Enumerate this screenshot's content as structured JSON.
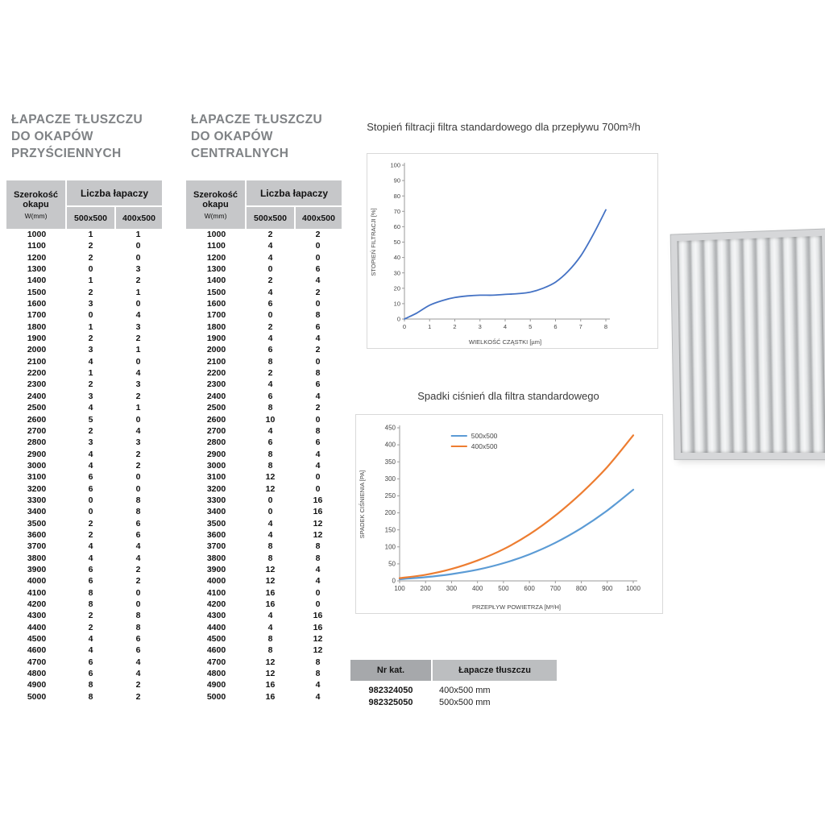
{
  "page": {
    "tables": [
      {
        "title_lines": [
          "ŁAPACZE TŁUSZCZU",
          "DO OKAPÓW",
          "PRZYŚCIENNYCH"
        ],
        "header": {
          "width_label_1": "Szerokość",
          "width_label_2": "okapu",
          "width_unit": "W(mm)",
          "group_label": "Liczba łapaczy",
          "col_500": "500x500",
          "col_400": "400x500"
        },
        "rows": [
          [
            1000,
            1,
            1
          ],
          [
            1100,
            2,
            0
          ],
          [
            1200,
            2,
            0
          ],
          [
            1300,
            0,
            3
          ],
          [
            1400,
            1,
            2
          ],
          [
            1500,
            2,
            1
          ],
          [
            1600,
            3,
            0
          ],
          [
            1700,
            0,
            4
          ],
          [
            1800,
            1,
            3
          ],
          [
            1900,
            2,
            2
          ],
          [
            2000,
            3,
            1
          ],
          [
            2100,
            4,
            0
          ],
          [
            2200,
            1,
            4
          ],
          [
            2300,
            2,
            3
          ],
          [
            2400,
            3,
            2
          ],
          [
            2500,
            4,
            1
          ],
          [
            2600,
            5,
            0
          ],
          [
            2700,
            2,
            4
          ],
          [
            2800,
            3,
            3
          ],
          [
            2900,
            4,
            2
          ],
          [
            3000,
            4,
            2
          ],
          [
            3100,
            6,
            0
          ],
          [
            3200,
            6,
            0
          ],
          [
            3300,
            0,
            8
          ],
          [
            3400,
            0,
            8
          ],
          [
            3500,
            2,
            6
          ],
          [
            3600,
            2,
            6
          ],
          [
            3700,
            4,
            4
          ],
          [
            3800,
            4,
            4
          ],
          [
            3900,
            6,
            2
          ],
          [
            4000,
            6,
            2
          ],
          [
            4100,
            8,
            0
          ],
          [
            4200,
            8,
            0
          ],
          [
            4300,
            2,
            8
          ],
          [
            4400,
            2,
            8
          ],
          [
            4500,
            4,
            6
          ],
          [
            4600,
            4,
            6
          ],
          [
            4700,
            6,
            4
          ],
          [
            4800,
            6,
            4
          ],
          [
            4900,
            8,
            2
          ],
          [
            5000,
            8,
            2
          ]
        ]
      },
      {
        "title_lines": [
          "ŁAPACZE TŁUSZCZU",
          "DO OKAPÓW",
          "CENTRALNYCH"
        ],
        "header": {
          "width_label_1": "Szerokość",
          "width_label_2": "okapu",
          "width_unit": "W(mm)",
          "group_label": "Liczba łapaczy",
          "col_500": "500x500",
          "col_400": "400x500"
        },
        "rows": [
          [
            1000,
            2,
            2
          ],
          [
            1100,
            4,
            0
          ],
          [
            1200,
            4,
            0
          ],
          [
            1300,
            0,
            6
          ],
          [
            1400,
            2,
            4
          ],
          [
            1500,
            4,
            2
          ],
          [
            1600,
            6,
            0
          ],
          [
            1700,
            0,
            8
          ],
          [
            1800,
            2,
            6
          ],
          [
            1900,
            4,
            4
          ],
          [
            2000,
            6,
            2
          ],
          [
            2100,
            8,
            0
          ],
          [
            2200,
            2,
            8
          ],
          [
            2300,
            4,
            6
          ],
          [
            2400,
            6,
            4
          ],
          [
            2500,
            8,
            2
          ],
          [
            2600,
            10,
            0
          ],
          [
            2700,
            4,
            8
          ],
          [
            2800,
            6,
            6
          ],
          [
            2900,
            8,
            4
          ],
          [
            3000,
            8,
            4
          ],
          [
            3100,
            12,
            0
          ],
          [
            3200,
            12,
            0
          ],
          [
            3300,
            0,
            16
          ],
          [
            3400,
            0,
            16
          ],
          [
            3500,
            4,
            12
          ],
          [
            3600,
            4,
            12
          ],
          [
            3700,
            8,
            8
          ],
          [
            3800,
            8,
            8
          ],
          [
            3900,
            12,
            4
          ],
          [
            4000,
            12,
            4
          ],
          [
            4100,
            16,
            0
          ],
          [
            4200,
            16,
            0
          ],
          [
            4300,
            4,
            16
          ],
          [
            4400,
            4,
            16
          ],
          [
            4500,
            8,
            12
          ],
          [
            4600,
            8,
            12
          ],
          [
            4700,
            12,
            8
          ],
          [
            4800,
            12,
            8
          ],
          [
            4900,
            16,
            4
          ],
          [
            5000,
            16,
            4
          ]
        ]
      }
    ],
    "catalog": {
      "header": [
        "Nr kat.",
        "Łapacze tłuszczu"
      ],
      "rows": [
        [
          "982324050",
          "400x500 mm"
        ],
        [
          "982325050",
          "500x500 mm"
        ]
      ]
    }
  },
  "chart_data": [
    {
      "type": "line",
      "title": "Stopień filtracji filtra standardowego dla przepływu 700m³/h",
      "xlabel": "WIELKOŚĆ CZĄSTKI [µm]",
      "ylabel": "STOPIEŃ FILTRACJI [%]",
      "xlim": [
        0,
        8
      ],
      "ylim": [
        0,
        100
      ],
      "xticks": [
        0,
        1,
        2,
        3,
        4,
        5,
        6,
        7,
        8
      ],
      "yticks": [
        0,
        10,
        20,
        30,
        40,
        50,
        60,
        70,
        80,
        90,
        100
      ],
      "grid": false,
      "legend": false,
      "series": [
        {
          "name": "",
          "color": "#4472c4",
          "x": [
            0,
            0.5,
            1,
            1.5,
            2,
            2.5,
            3,
            3.5,
            4,
            4.5,
            5,
            5.5,
            6,
            6.5,
            7,
            7.5,
            8
          ],
          "y": [
            0,
            4,
            9,
            12,
            14,
            15,
            15.5,
            15.5,
            16,
            16.5,
            17.5,
            20,
            24,
            31,
            41,
            55,
            71
          ]
        }
      ]
    },
    {
      "type": "line",
      "title": "Spadki ciśnień dla filtra standardowego",
      "xlabel": "PRZEPŁYW POWIETRZA [M³/H]",
      "ylabel": "SPADEK CIŚNIENIA [PA]",
      "xlim": [
        100,
        1000
      ],
      "ylim": [
        0,
        450
      ],
      "xticks": [
        100,
        200,
        300,
        400,
        500,
        600,
        700,
        800,
        900,
        1000
      ],
      "yticks": [
        0,
        50,
        100,
        150,
        200,
        250,
        300,
        350,
        400,
        450
      ],
      "grid": false,
      "legend": "top-center",
      "series": [
        {
          "name": "500x500",
          "color": "#5b9bd5",
          "x": [
            100,
            200,
            300,
            400,
            500,
            600,
            700,
            800,
            900,
            1000
          ],
          "y": [
            5,
            11,
            20,
            33,
            52,
            78,
            112,
            155,
            207,
            268
          ]
        },
        {
          "name": "400x500",
          "color": "#ed7d31",
          "x": [
            100,
            200,
            300,
            400,
            500,
            600,
            700,
            800,
            900,
            1000
          ],
          "y": [
            8,
            18,
            35,
            60,
            93,
            137,
            192,
            258,
            335,
            428
          ]
        }
      ]
    }
  ],
  "colors": {
    "title_gray": "#7f8285",
    "table_header_bg": "#c6c7c9",
    "series_blue_dark": "#4472c4",
    "series_blue": "#5b9bd5",
    "series_orange": "#ed7d31",
    "catalog_header_bg_left": "#a6a8ab",
    "catalog_header_bg_right": "#bcbec0"
  }
}
